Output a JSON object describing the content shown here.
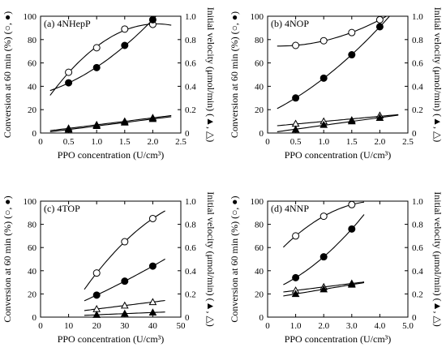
{
  "chart_data": [
    {
      "type": "scatter",
      "title": "(a) 4NHepP",
      "xlabel": "PPO concentration (U/cm³)",
      "ylabel_left": "Conversion at 60 min (%) (○, ●)",
      "ylabel_right": "Initial velocity (μmol/min) (▲, △)",
      "xlim": [
        0,
        2.5
      ],
      "xticks": [
        "0",
        "0.5",
        "1.0",
        "1.5",
        "2.0",
        "2.5"
      ],
      "xticks_num": [
        0,
        0.5,
        1.0,
        1.5,
        2.0,
        2.5
      ],
      "ylim_left": [
        0,
        100
      ],
      "yticks_left": [
        "0",
        "20",
        "40",
        "60",
        "80",
        "100"
      ],
      "yticks_right": [
        "0",
        "0.2",
        "0.4",
        "0.6",
        "0.8",
        "1.0"
      ],
      "series": [
        {
          "marker": "open-circle",
          "x": [
            0.5,
            1.0,
            1.5,
            2.0
          ],
          "y": [
            52,
            73,
            89,
            93
          ]
        },
        {
          "marker": "filled-circle",
          "x": [
            0.5,
            1.0,
            1.5,
            2.0
          ],
          "y": [
            43,
            56,
            75,
            97
          ]
        },
        {
          "marker": "open-triangle",
          "x": [
            0.5,
            1.0,
            1.5,
            2.0
          ],
          "y": [
            0.04,
            0.07,
            0.1,
            0.13
          ]
        },
        {
          "marker": "filled-triangle",
          "x": [
            0.5,
            1.0,
            1.5,
            2.0
          ],
          "y": [
            0.03,
            0.06,
            0.09,
            0.12
          ]
        }
      ]
    },
    {
      "type": "scatter",
      "title": "(b) 4NOP",
      "xlabel": "PPO concentration (U/cm³)",
      "ylabel_left": "Conversion at 60 min (%) (○, ●)",
      "ylabel_right": "Initial velocity (μmol/min) (▲, △)",
      "xlim": [
        0,
        2.5
      ],
      "xticks": [
        "0",
        "0.5",
        "1.0",
        "1.5",
        "2.0",
        "2.5"
      ],
      "xticks_num": [
        0,
        0.5,
        1.0,
        1.5,
        2.0,
        2.5
      ],
      "ylim_left": [
        0,
        100
      ],
      "yticks_left": [
        "0",
        "20",
        "40",
        "60",
        "80",
        "100"
      ],
      "yticks_right": [
        "0",
        "0.2",
        "0.4",
        "0.6",
        "0.8",
        "1.0"
      ],
      "series": [
        {
          "marker": "open-circle",
          "x": [
            0.5,
            1.0,
            1.5,
            2.0
          ],
          "y": [
            75,
            79,
            86,
            97
          ]
        },
        {
          "marker": "filled-circle",
          "x": [
            0.5,
            1.0,
            1.5,
            2.0
          ],
          "y": [
            30,
            47,
            67,
            91
          ]
        },
        {
          "marker": "open-triangle",
          "x": [
            0.5,
            1.0,
            1.5,
            2.0
          ],
          "y": [
            0.08,
            0.1,
            0.11,
            0.15
          ]
        },
        {
          "marker": "filled-triangle",
          "x": [
            0.5,
            1.0,
            1.5,
            2.0
          ],
          "y": [
            0.03,
            0.07,
            0.1,
            0.13
          ]
        }
      ]
    },
    {
      "type": "scatter",
      "title": "(c) 4TOP",
      "xlabel": "PPO concentration (U/cm³)",
      "ylabel_left": "Conversion at 60 min (%) (○, ●)",
      "ylabel_right": "Initial velocity (μmol/min) (▲, △)",
      "xlim": [
        0,
        50
      ],
      "xticks": [
        "0",
        "10",
        "20",
        "30",
        "40",
        "50"
      ],
      "xticks_num": [
        0,
        10,
        20,
        30,
        40,
        50
      ],
      "ylim_left": [
        0,
        100
      ],
      "yticks_left": [
        "0",
        "20",
        "40",
        "60",
        "80",
        "100"
      ],
      "yticks_right": [
        "0",
        "0.2",
        "0.4",
        "0.6",
        "0.8",
        "1.0"
      ],
      "series": [
        {
          "marker": "open-circle",
          "x": [
            20,
            30,
            40
          ],
          "y": [
            38,
            65,
            85
          ]
        },
        {
          "marker": "filled-circle",
          "x": [
            20,
            30,
            40
          ],
          "y": [
            19,
            31,
            44
          ]
        },
        {
          "marker": "open-triangle",
          "x": [
            20,
            30,
            40
          ],
          "y": [
            0.07,
            0.1,
            0.13
          ]
        },
        {
          "marker": "filled-triangle",
          "x": [
            20,
            30,
            40
          ],
          "y": [
            0.02,
            0.03,
            0.04
          ]
        }
      ]
    },
    {
      "type": "scatter",
      "title": "(d) 4NNP",
      "xlabel": "PPO concentration (U/cm³)",
      "ylabel_left": "Conversion at 60 min (%) (○, ●)",
      "ylabel_right": "Initial velocity (μmol/min) (▲, △)",
      "xlim": [
        0,
        5.0
      ],
      "xticks": [
        "0",
        "1.0",
        "2.0",
        "3.0",
        "4.0",
        "5.0"
      ],
      "xticks_num": [
        0,
        1.0,
        2.0,
        3.0,
        4.0,
        5.0
      ],
      "ylim_left": [
        0,
        100
      ],
      "yticks_left": [
        "0",
        "20",
        "40",
        "60",
        "80",
        "100"
      ],
      "yticks_right": [
        "0",
        "0.2",
        "0.4",
        "0.6",
        "0.8",
        "1.0"
      ],
      "series": [
        {
          "marker": "open-circle",
          "x": [
            1.0,
            2.0,
            3.0
          ],
          "y": [
            70,
            87,
            97
          ]
        },
        {
          "marker": "filled-circle",
          "x": [
            1.0,
            2.0,
            3.0
          ],
          "y": [
            34,
            52,
            76
          ]
        },
        {
          "marker": "open-triangle",
          "x": [
            1.0,
            2.0,
            3.0
          ],
          "y": [
            0.23,
            0.26,
            0.29
          ]
        },
        {
          "marker": "filled-triangle",
          "x": [
            1.0,
            2.0,
            3.0
          ],
          "y": [
            0.2,
            0.24,
            0.28
          ]
        }
      ]
    }
  ]
}
